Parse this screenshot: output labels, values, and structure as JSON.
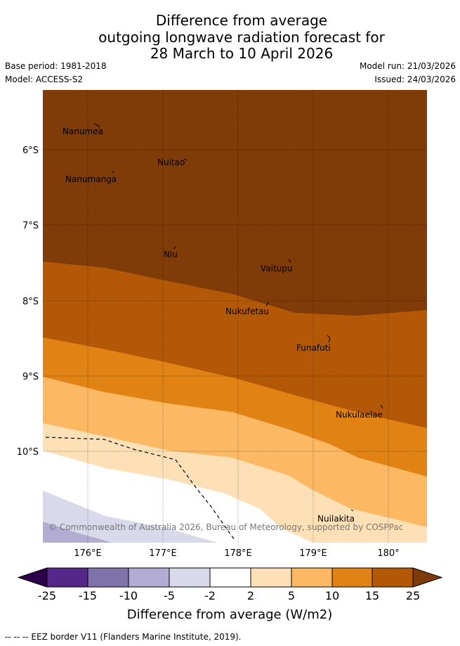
{
  "title": {
    "line1": "Difference from average",
    "line2": "outgoing longwave radiation forecast for",
    "line3": "28 March to 10 April 2026"
  },
  "meta": {
    "base_period": "Base period: 1981-2018",
    "model": "Model: ACCESS-S2",
    "model_run": "Model run: 21/03/2026",
    "issued": "Issued: 24/03/2026"
  },
  "map": {
    "lat_labels": [
      "6°S",
      "7°S",
      "8°S",
      "9°S",
      "10°S"
    ],
    "lon_labels": [
      "176°E",
      "177°E",
      "178°E",
      "179°E",
      "180°"
    ],
    "places": [
      {
        "name": "Nanumea"
      },
      {
        "name": "Nuitao"
      },
      {
        "name": "Nanumanga"
      },
      {
        "name": "Niu"
      },
      {
        "name": "Vaitupu"
      },
      {
        "name": "Nukufetau"
      },
      {
        "name": "Funafuti"
      },
      {
        "name": "Nukulaelae"
      },
      {
        "name": "Nuilakita"
      }
    ],
    "copyright": "© Commonwealth of Australia 2026, Bureau of Meteorology, supported by COSPPac"
  },
  "colorbar": {
    "ticks": [
      "-25",
      "-15",
      "-10",
      "-5",
      "-2",
      "2",
      "5",
      "10",
      "15",
      "25"
    ],
    "colors": {
      "below_min": "#2d004b",
      "c1": "#542788",
      "c2": "#8073ac",
      "c3": "#b2abd2",
      "c4": "#d8daeb",
      "c5": "#ffffff",
      "c6": "#fee0b6",
      "c7": "#fdb863",
      "c8": "#e08214",
      "c9": "#b35806",
      "above_max": "#7f3b08"
    },
    "label": "Difference from average (W/m2)"
  },
  "footnote": "-- -- -- EEZ border V11 (Flanders Marine Institute, 2019)."
}
